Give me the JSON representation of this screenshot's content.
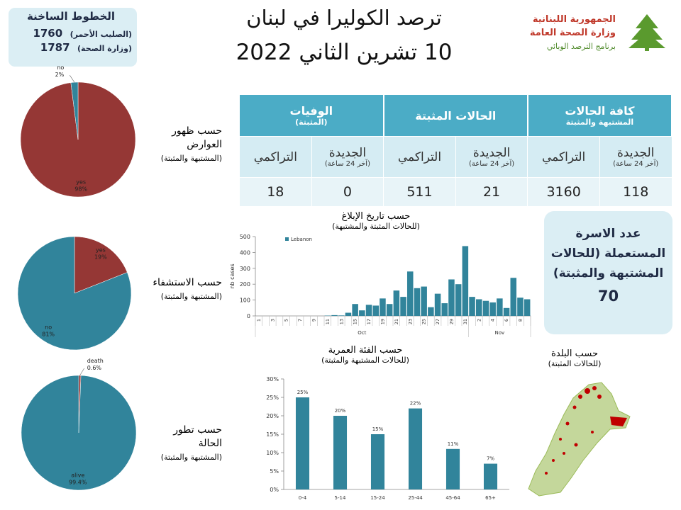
{
  "header": {
    "title": "ترصد الكوليرا في لبنان",
    "date": "10 تشرين الثاني 2022",
    "logo": [
      "الجمهورية اللبنانية",
      "وزارة الصحة العامة",
      "برنامج الترصد الوبائي"
    ]
  },
  "hotlines": {
    "title": "الخطوط الساخنة",
    "rows": [
      [
        "1760",
        "(الصليب الأحمر)"
      ],
      [
        "1787",
        "(وزارة الصحة)"
      ]
    ]
  },
  "table": {
    "groups": [
      {
        "title": "كافة الحالات",
        "subtitle": "المشتبهة والمثبتة",
        "columns": [
          {
            "title": "الجديدة",
            "subtitle": "(آخر 24 ساعة)",
            "value": 118
          },
          {
            "title": "التراكمي",
            "value": 3160
          }
        ]
      },
      {
        "title": "الحالات المثبتة",
        "columns": [
          {
            "title": "الجديدة",
            "subtitle": "(آخر 24 ساعة)",
            "value": 21
          },
          {
            "title": "التراكمي",
            "value": 511
          }
        ]
      },
      {
        "title": "الوفيات",
        "subtitle": "(المثبتة)",
        "columns": [
          {
            "title": "الجديدة",
            "subtitle": "(آخر 24 ساعة)",
            "value": 0
          },
          {
            "title": "التراكمي",
            "value": 18
          }
        ]
      }
    ]
  },
  "household": {
    "title": "عدد الاسرة المستعملة (للحالات المشتبهة والمثبتة)",
    "value": 70
  },
  "map": {
    "title": "حسب البلدة",
    "subtitle": "(للحالات المثبتة)"
  },
  "chart_data": [
    {
      "type": "pie",
      "title": "حسب ظهور العوارض",
      "subtitle": "(المشتبهة والمثبتة)",
      "categories": [
        "yes",
        "no"
      ],
      "values": [
        98,
        2
      ],
      "value_labels": [
        "98%",
        "2%"
      ],
      "colors": [
        "#953735",
        "#31849b"
      ]
    },
    {
      "type": "pie",
      "title": "حسب الاستشفاء",
      "subtitle": "(المشتبهة والمثبتة)",
      "categories": [
        "yes",
        "no"
      ],
      "values": [
        19,
        81
      ],
      "value_labels": [
        "19%",
        "81%"
      ],
      "colors": [
        "#953735",
        "#31849b"
      ]
    },
    {
      "type": "pie",
      "title": "حسب تطور الحالة",
      "subtitle": "(المشتبهة والمثبتة)",
      "categories": [
        "death",
        "alive"
      ],
      "values": [
        0.6,
        99.4
      ],
      "value_labels": [
        "0.6%",
        "99.4%"
      ],
      "colors": [
        "#953735",
        "#31849b"
      ]
    },
    {
      "type": "bar",
      "title": "حسب تاريخ الإبلاغ",
      "subtitle": "(للحالات المثبتة والمشتبهة)",
      "y_label": "nb cases",
      "categories": [
        "1",
        null,
        "3",
        null,
        "5",
        null,
        "7",
        null,
        "9",
        null,
        "11",
        null,
        "13",
        null,
        "15",
        null,
        "17",
        null,
        "19",
        null,
        "21",
        null,
        "23",
        null,
        "25",
        null,
        "27",
        null,
        "29",
        null,
        "31",
        null,
        "2",
        null,
        "4",
        null,
        "6",
        null,
        "8",
        null
      ],
      "month_groups": [
        {
          "label": "Oct",
          "size": 31
        },
        {
          "label": "Nov",
          "size": 9
        }
      ],
      "series": [
        {
          "name": "Lebanon",
          "color": "#31849b",
          "values": [
            0,
            0,
            0,
            0,
            0,
            0,
            0,
            0,
            0,
            0,
            2,
            5,
            3,
            20,
            75,
            35,
            70,
            65,
            110,
            75,
            160,
            120,
            280,
            175,
            185,
            55,
            140,
            80,
            230,
            200,
            440,
            120,
            105,
            95,
            85,
            110,
            50,
            240,
            115,
            105
          ]
        }
      ],
      "ylim": [
        0,
        500
      ],
      "yticks": [
        0,
        100,
        200,
        300,
        400,
        500
      ],
      "legend": "top-left"
    },
    {
      "type": "bar",
      "title": "حسب الفئة العمرية",
      "subtitle": "(للحالات المشتبهة والمثبتة)",
      "categories": [
        "0-4",
        "5-14",
        "15-24",
        "25-44",
        "45-64",
        "65+"
      ],
      "values": [
        25,
        20,
        15,
        22,
        11,
        7
      ],
      "value_labels": [
        "25%",
        "20%",
        "15%",
        "22%",
        "11%",
        "7%"
      ],
      "color": "#31849b",
      "ylim": [
        0,
        30
      ],
      "yticks": [
        {
          "value": 0,
          "label": "0%"
        },
        {
          "value": 5,
          "label": "5%"
        },
        {
          "value": 10,
          "label": "10%"
        },
        {
          "value": 15,
          "label": "15%"
        },
        {
          "value": 20,
          "label": "20%"
        },
        {
          "value": 25,
          "label": "25%"
        },
        {
          "value": 30,
          "label": "30%"
        }
      ]
    }
  ]
}
